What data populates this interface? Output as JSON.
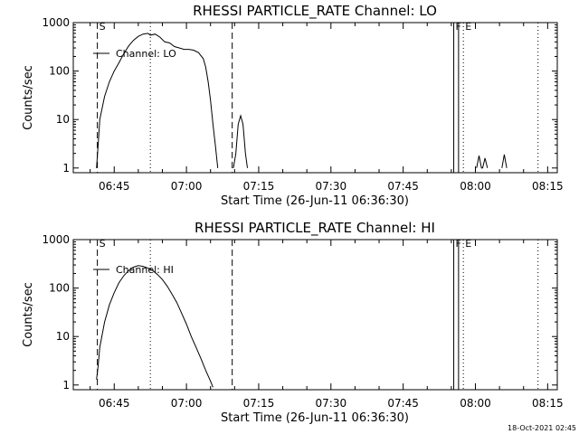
{
  "footer_timestamp": "18-Oct-2021 02:45",
  "chart_data": [
    {
      "type": "line",
      "title": "RHESSI PARTICLE_RATE Channel: LO",
      "ylabel": "Counts/sec",
      "xlabel": "Start Time (26-Jun-11 06:36:30)",
      "yscale": "log",
      "ylim": [
        0.8,
        1000
      ],
      "yticks": [
        {
          "value": 1,
          "label": "1"
        },
        {
          "value": 10,
          "label": "10"
        },
        {
          "value": 100,
          "label": "100"
        },
        {
          "value": 1000,
          "label": "1000"
        }
      ],
      "xlim": [
        "06:36:30",
        "08:17:00"
      ],
      "xticks": [
        "06:45",
        "07:00",
        "07:15",
        "07:30",
        "07:45",
        "08:00",
        "08:15"
      ],
      "legend": {
        "label": "Channel: LO",
        "position": "top-left"
      },
      "markers": [
        {
          "time": "06:41:30",
          "style": "dashed",
          "label": "S"
        },
        {
          "time": "06:52:30",
          "style": "dotted",
          "label": ""
        },
        {
          "time": "07:09:30",
          "style": "dashed",
          "label": ""
        },
        {
          "time": "07:55:30",
          "style": "solid",
          "label": "F"
        },
        {
          "time": "07:56:30",
          "style": "solid",
          "label": ""
        },
        {
          "time": "07:57:30",
          "style": "dotted",
          "label": "E"
        },
        {
          "time": "08:13:00",
          "style": "dotted",
          "label": ""
        }
      ],
      "series": [
        {
          "segments": [
            [
              [
                "06:41:20",
                1
              ],
              [
                "06:41:40",
                3
              ],
              [
                "06:42:00",
                10
              ],
              [
                "06:43:00",
                30
              ],
              [
                "06:44:00",
                60
              ],
              [
                "06:45:00",
                100
              ],
              [
                "06:46:00",
                150
              ],
              [
                "06:47:00",
                230
              ],
              [
                "06:48:00",
                330
              ],
              [
                "06:49:00",
                430
              ],
              [
                "06:50:00",
                520
              ],
              [
                "06:51:00",
                580
              ],
              [
                "06:52:00",
                600
              ],
              [
                "06:52:30",
                550
              ],
              [
                "06:53:30",
                580
              ],
              [
                "06:54:30",
                500
              ],
              [
                "06:55:30",
                400
              ],
              [
                "06:56:30",
                380
              ],
              [
                "06:57:30",
                320
              ],
              [
                "06:58:30",
                300
              ],
              [
                "06:59:30",
                280
              ],
              [
                "07:00:30",
                280
              ],
              [
                "07:01:30",
                270
              ],
              [
                "07:02:30",
                240
              ],
              [
                "07:03:30",
                180
              ],
              [
                "07:04:00",
                120
              ],
              [
                "07:04:30",
                60
              ],
              [
                "07:05:00",
                25
              ],
              [
                "07:05:30",
                8
              ],
              [
                "07:06:00",
                3
              ],
              [
                "07:06:30",
                1
              ]
            ],
            [
              [
                "07:09:45",
                1
              ],
              [
                "07:10:15",
                2
              ],
              [
                "07:10:45",
                8
              ],
              [
                "07:11:15",
                12
              ],
              [
                "07:11:45",
                8
              ],
              [
                "07:12:15",
                2
              ],
              [
                "07:12:40",
                1
              ]
            ],
            [
              [
                "08:00:15",
                1
              ],
              [
                "08:00:45",
                1.8
              ],
              [
                "08:01:15",
                1
              ],
              [
                "08:01:30",
                1
              ],
              [
                "08:02:00",
                1.6
              ],
              [
                "08:02:30",
                1
              ]
            ],
            [
              [
                "08:05:30",
                1
              ],
              [
                "08:06:00",
                1.9
              ],
              [
                "08:06:30",
                1
              ]
            ]
          ]
        }
      ]
    },
    {
      "type": "line",
      "title": "RHESSI PARTICLE_RATE Channel: HI",
      "ylabel": "Counts/sec",
      "xlabel": "Start Time (26-Jun-11 06:36:30)",
      "yscale": "log",
      "ylim": [
        0.8,
        1000
      ],
      "yticks": [
        {
          "value": 1,
          "label": "1"
        },
        {
          "value": 10,
          "label": "10"
        },
        {
          "value": 100,
          "label": "100"
        },
        {
          "value": 1000,
          "label": "1000"
        }
      ],
      "xlim": [
        "06:36:30",
        "08:17:00"
      ],
      "xticks": [
        "06:45",
        "07:00",
        "07:15",
        "07:30",
        "07:45",
        "08:00",
        "08:15"
      ],
      "legend": {
        "label": "Channel: HI",
        "position": "top-left"
      },
      "markers": [
        {
          "time": "06:41:30",
          "style": "dashed",
          "label": "S"
        },
        {
          "time": "06:52:30",
          "style": "dotted",
          "label": ""
        },
        {
          "time": "07:09:30",
          "style": "dashed",
          "label": ""
        },
        {
          "time": "07:55:30",
          "style": "solid",
          "label": "F"
        },
        {
          "time": "07:56:30",
          "style": "solid",
          "label": ""
        },
        {
          "time": "07:57:30",
          "style": "dotted",
          "label": "E"
        },
        {
          "time": "08:13:00",
          "style": "dotted",
          "label": ""
        }
      ],
      "series": [
        {
          "segments": [
            [
              [
                "06:41:20",
                1.3
              ],
              [
                "06:41:40",
                2.5
              ],
              [
                "06:42:00",
                6
              ],
              [
                "06:43:00",
                20
              ],
              [
                "06:44:00",
                45
              ],
              [
                "06:45:00",
                80
              ],
              [
                "06:46:00",
                130
              ],
              [
                "06:47:00",
                180
              ],
              [
                "06:48:00",
                230
              ],
              [
                "06:49:00",
                270
              ],
              [
                "06:50:00",
                290
              ],
              [
                "06:51:00",
                280
              ],
              [
                "06:52:00",
                260
              ],
              [
                "06:53:00",
                230
              ],
              [
                "06:54:00",
                190
              ],
              [
                "06:55:00",
                150
              ],
              [
                "06:56:00",
                110
              ],
              [
                "06:57:00",
                75
              ],
              [
                "06:58:00",
                50
              ],
              [
                "06:59:00",
                30
              ],
              [
                "07:00:00",
                18
              ],
              [
                "07:01:00",
                10
              ],
              [
                "07:02:00",
                6
              ],
              [
                "07:03:00",
                3.5
              ],
              [
                "07:04:00",
                2
              ],
              [
                "07:05:00",
                1.2
              ],
              [
                "07:05:30",
                0.9
              ]
            ]
          ]
        }
      ]
    }
  ]
}
